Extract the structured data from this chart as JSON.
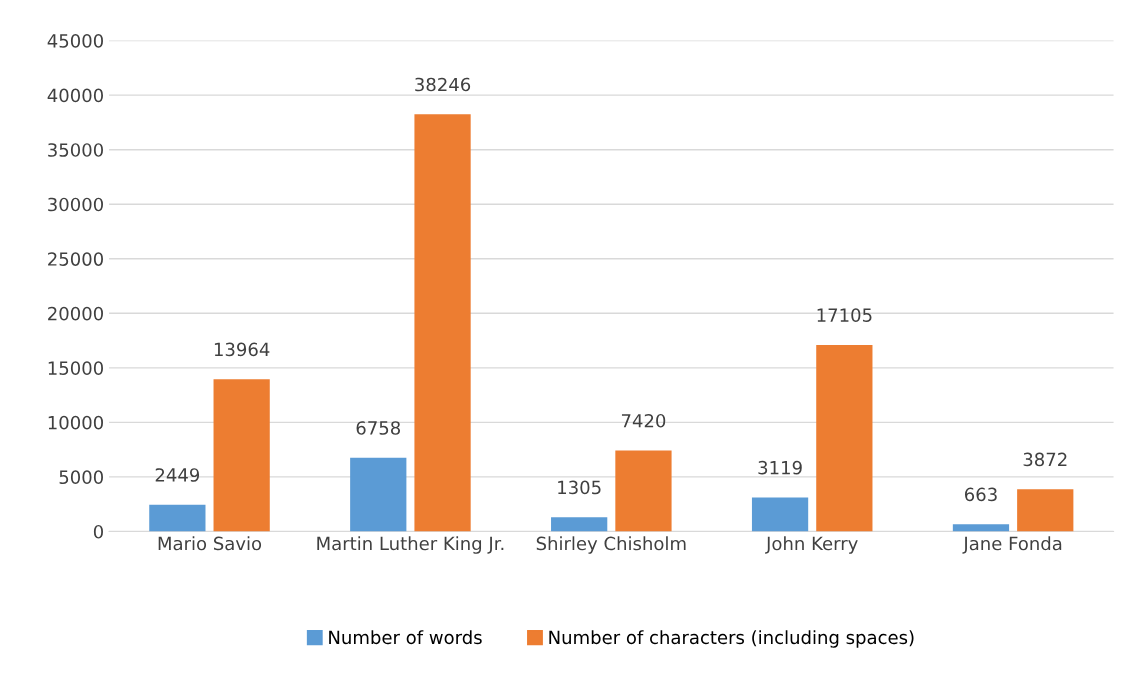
{
  "chart_data": {
    "type": "bar",
    "categories": [
      "Mario Savio",
      "Martin Luther King Jr.",
      "Shirley Chisholm",
      "John Kerry",
      "Jane Fonda"
    ],
    "series": [
      {
        "name": "Number of words",
        "color": "#5b9bd5",
        "values": [
          2449,
          6758,
          1305,
          3119,
          663
        ]
      },
      {
        "name": "Number of characters (including spaces)",
        "color": "#ed7d31",
        "values": [
          13964,
          38246,
          7420,
          17105,
          3872
        ]
      }
    ],
    "ylim": [
      0,
      45000
    ],
    "yticks": [
      0,
      5000,
      10000,
      15000,
      20000,
      25000,
      30000,
      35000,
      40000,
      45000
    ],
    "grid": "y",
    "legend": "bottom",
    "data_labels": true
  }
}
